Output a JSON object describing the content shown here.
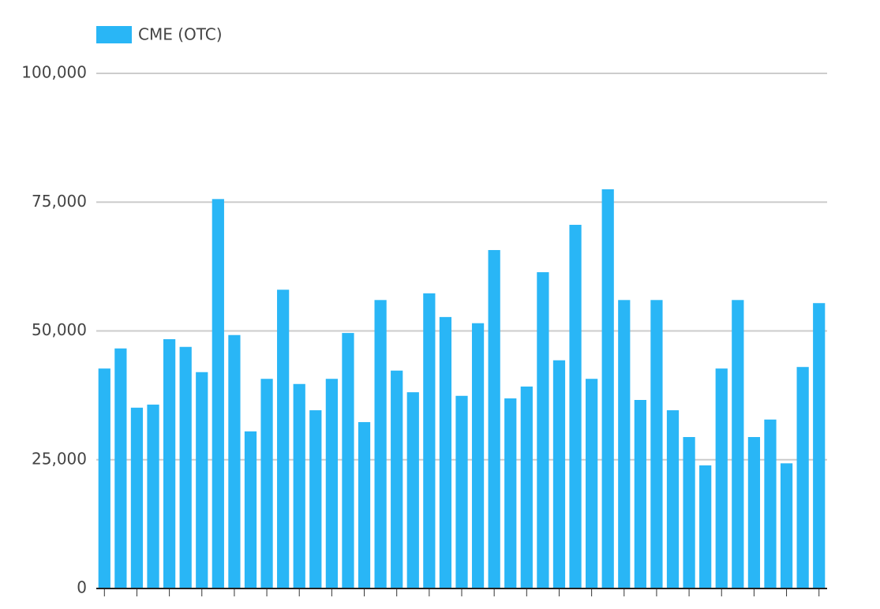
{
  "chart_data": {
    "type": "bar",
    "categories": [
      null,
      null,
      null,
      null,
      null,
      null,
      null,
      null,
      null,
      null,
      null,
      null,
      null,
      null,
      null,
      null,
      null,
      null,
      null,
      null,
      null,
      null,
      null,
      null,
      null,
      null,
      null,
      null,
      null,
      null,
      null,
      null,
      null,
      null,
      null,
      null,
      null,
      null,
      null,
      null,
      null,
      null,
      null,
      null,
      null
    ],
    "series": [
      {
        "name": "CME (OTC)",
        "color": "#29b6f6",
        "values": [
          42700,
          46600,
          35100,
          35700,
          48400,
          46900,
          42000,
          75600,
          49200,
          30500,
          40700,
          58000,
          39700,
          34600,
          40700,
          49600,
          32300,
          56000,
          42300,
          38100,
          57300,
          52700,
          37400,
          51500,
          65700,
          36900,
          39200,
          61400,
          44300,
          70600,
          40700,
          77500,
          56000,
          36600,
          56000,
          34600,
          29400,
          23900,
          42700,
          56000,
          29400,
          32800,
          24300,
          43000,
          55400
        ]
      }
    ],
    "ylim": [
      0,
      100000
    ],
    "yticks": [
      0,
      {
        "value": 25000,
        "label": "25,000"
      },
      {
        "value": 50000,
        "label": "50,000"
      },
      {
        "value": 75000,
        "label": "75,000"
      },
      {
        "value": 100000,
        "label": "100,000"
      }
    ],
    "grid": true,
    "legend": "top-left"
  }
}
